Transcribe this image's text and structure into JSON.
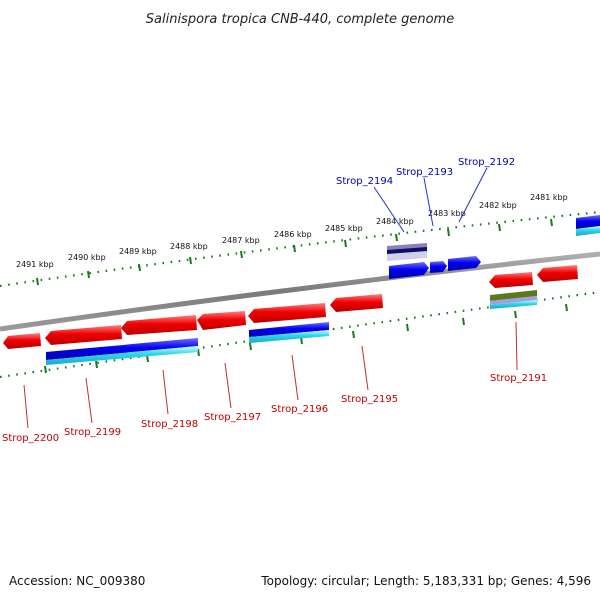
{
  "title": "Salinispora tropica CNB-440, complete genome",
  "footer": {
    "accession": "Accession: NC_009380",
    "topology": "Topology: circular; Length: 5,183,331 bp; Genes: 4,596"
  },
  "ruler_labels": [
    "2491 kbp",
    "2490 kbp",
    "2489 kbp",
    "2488 kbp",
    "2487 kbp",
    "2486 kbp",
    "2485 kbp",
    "2484 kbp",
    "2483 kbp",
    "2482 kbp",
    "2481 kbp"
  ],
  "genes_top": [
    "Strop_2194",
    "Strop_2193",
    "Strop_2192"
  ],
  "genes_bottom": [
    "Strop_2200",
    "Strop_2199",
    "Strop_2198",
    "Strop_2197",
    "Strop_2196",
    "Strop_2195",
    "Strop_2191"
  ],
  "colors": {
    "forward_gene": "#1010e0",
    "reverse_gene": "#e01010",
    "cds_cyan": "#30d8e8",
    "backbone": "#8a8a8a",
    "ticks": "#1a7a1a"
  }
}
